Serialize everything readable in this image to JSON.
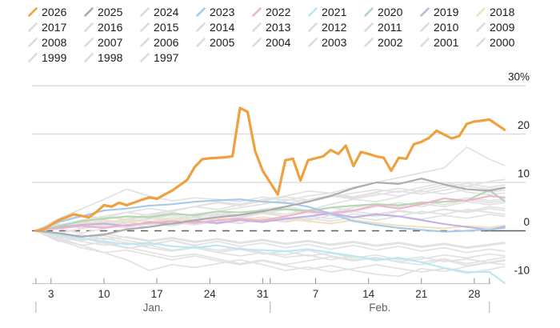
{
  "legend": {
    "items": [
      {
        "year": "2026",
        "color": "#EFA03F"
      },
      {
        "year": "2025",
        "color": "#ABABAB"
      },
      {
        "year": "2024",
        "color": "#DBDBDB"
      },
      {
        "year": "2023",
        "color": "#A6C9E9"
      },
      {
        "year": "2022",
        "color": "#EFB2CB"
      },
      {
        "year": "2021",
        "color": "#BBE7F1"
      },
      {
        "year": "2020",
        "color": "#B2D8B1"
      },
      {
        "year": "2019",
        "color": "#C3B2E4"
      },
      {
        "year": "2018",
        "color": "#F2E2BE"
      },
      {
        "year": "2017",
        "color": "#DBDBDB"
      },
      {
        "year": "2016",
        "color": "#DBDBDB"
      },
      {
        "year": "2015",
        "color": "#DBDBDB"
      },
      {
        "year": "2014",
        "color": "#DBDBDB"
      },
      {
        "year": "2013",
        "color": "#DBDBDB"
      },
      {
        "year": "2012",
        "color": "#DBDBDB"
      },
      {
        "year": "2011",
        "color": "#DBDBDB"
      },
      {
        "year": "2010",
        "color": "#DBDBDB"
      },
      {
        "year": "2009",
        "color": "#DBDBDB"
      },
      {
        "year": "2008",
        "color": "#DBDBDB"
      },
      {
        "year": "2007",
        "color": "#DBDBDB"
      },
      {
        "year": "2006",
        "color": "#DBDBDB"
      },
      {
        "year": "2005",
        "color": "#DBDBDB"
      },
      {
        "year": "2004",
        "color": "#DBDBDB"
      },
      {
        "year": "2003",
        "color": "#DBDBDB"
      },
      {
        "year": "2002",
        "color": "#DBDBDB"
      },
      {
        "year": "2001",
        "color": "#DBDBDB"
      },
      {
        "year": "2000",
        "color": "#DBDBDB"
      },
      {
        "year": "1999",
        "color": "#DBDBDB"
      },
      {
        "year": "1998",
        "color": "#DBDBDB"
      },
      {
        "year": "1997",
        "color": "#DBDBDB"
      }
    ]
  },
  "chart_data": {
    "type": "line",
    "title": "",
    "xlabel": "",
    "ylabel": "",
    "x_unit": "day of year (Jan 1 = 1)",
    "y_unit": "percent",
    "x_axis": {
      "domain": [
        1,
        63
      ],
      "labeled_tick_days": [
        3,
        10,
        17,
        24,
        31,
        38,
        45,
        52,
        59
      ],
      "labeled_tick_labels": [
        "3",
        "10",
        "17",
        "24",
        "31",
        "7",
        "14",
        "21",
        "28"
      ],
      "boundary_tick_days": [
        1,
        32,
        61
      ],
      "month_labels": [
        {
          "label": "Jan.",
          "center_day": 16.5
        },
        {
          "label": "Feb.",
          "center_day": 46.5
        }
      ]
    },
    "y_axis": {
      "range": [
        -12,
        31
      ],
      "tick_values": [
        30,
        20,
        10,
        0,
        -10
      ],
      "tick_labels": [
        "30%",
        "20",
        "10",
        "0",
        "-10"
      ],
      "gridline_values": [
        30,
        20,
        10
      ],
      "zero_line_dashed": true,
      "legend_position": "top"
    },
    "line_colors": {
      "gray_line": "#E2E2E2",
      "gridline": "#DADADA",
      "zero_line": "#5F5F5F",
      "axis_line": "#C8C8C8",
      "tick": "#8F8F8F",
      "tick_label": "#2E2E2E",
      "month_label": "#5F5F5F",
      "y_label": "#1F1F1F",
      "month_pipe": "#ADADAD"
    },
    "default_days": [
      1,
      4,
      7,
      10,
      13,
      16,
      19,
      22,
      25,
      28,
      31,
      34,
      37,
      40,
      43,
      46,
      49,
      52,
      55,
      58,
      61,
      63
    ],
    "series": [
      {
        "name": "1997",
        "values": [
          0,
          -1.6,
          -0.8,
          -1.8,
          -1.2,
          -2.0,
          -1.4,
          -2.2,
          -1.6,
          -2.4,
          -1.8,
          -2.6,
          -2.0,
          -2.8,
          -2.2,
          -3.0,
          -2.4,
          -3.2,
          -2.6,
          -3.4,
          -2.8,
          -2.4
        ]
      },
      {
        "name": "1998",
        "values": [
          0,
          0.4,
          1.2,
          0.8,
          1.6,
          2.4,
          3.2,
          2.6,
          3.6,
          3.0,
          4.0,
          3.4,
          4.4,
          3.8,
          4.8,
          5.6,
          5.0,
          6.0,
          5.4,
          6.4,
          5.8,
          6.2
        ]
      },
      {
        "name": "1999",
        "values": [
          0,
          2.0,
          3.2,
          2.6,
          3.8,
          4.6,
          4.0,
          5.0,
          5.8,
          5.2,
          6.2,
          7.0,
          6.4,
          7.4,
          6.8,
          7.8,
          7.2,
          8.2,
          7.6,
          8.6,
          8.0,
          8.4
        ]
      },
      {
        "name": "2000",
        "values": [
          0,
          -2.2,
          -1.4,
          -2.6,
          -3.6,
          -3.0,
          -4.0,
          -3.4,
          -4.4,
          -3.8,
          -4.8,
          -4.2,
          -5.2,
          -4.6,
          -5.6,
          -5.0,
          -6.0,
          -5.4,
          -6.4,
          -5.8,
          -6.6,
          -6.2
        ]
      },
      {
        "name": "2001",
        "values": [
          0,
          1.4,
          0.6,
          1.6,
          2.4,
          1.8,
          2.8,
          2.2,
          3.2,
          2.6,
          3.6,
          4.4,
          3.8,
          4.8,
          4.2,
          5.2,
          4.6,
          5.6,
          5.0,
          6.0,
          5.4,
          5.8
        ]
      },
      {
        "name": "2002",
        "values": [
          0,
          -0.6,
          0.4,
          1.2,
          0.6,
          1.6,
          1.0,
          2.0,
          1.4,
          2.4,
          1.8,
          2.8,
          2.2,
          3.2,
          2.6,
          3.6,
          3.0,
          4.0,
          3.4,
          4.4,
          3.8,
          3.4
        ]
      },
      {
        "name": "2003",
        "values": [
          0,
          -1.8,
          -3.0,
          -2.4,
          -3.4,
          -4.4,
          -5.4,
          -4.8,
          -5.8,
          -6.8,
          -6.0,
          -7.0,
          -6.2,
          -5.4,
          -6.2,
          -5.6,
          -6.4,
          -5.8,
          -5.0,
          -5.6,
          -4.8,
          -5.2
        ]
      },
      {
        "name": "2004",
        "values": [
          0,
          0.8,
          1.6,
          1.0,
          1.8,
          1.2,
          2.0,
          1.4,
          2.2,
          1.6,
          2.4,
          1.8,
          2.6,
          2.0,
          2.8,
          2.2,
          3.0,
          2.4,
          3.2,
          2.6,
          3.4,
          3.0
        ]
      },
      {
        "name": "2005",
        "values": [
          0,
          -0.4,
          -1.2,
          -0.6,
          -1.4,
          -2.2,
          -1.6,
          -2.4,
          -1.8,
          -2.6,
          -2.0,
          -2.8,
          -2.2,
          -3.0,
          -2.4,
          -3.2,
          -2.6,
          -3.4,
          -2.8,
          -3.6,
          -3.0,
          -2.6
        ]
      },
      {
        "name": "2006",
        "values": [
          0,
          1.0,
          2.2,
          3.0,
          3.8,
          3.2,
          4.2,
          5.0,
          4.4,
          5.4,
          6.2,
          5.6,
          6.4,
          7.2,
          6.6,
          7.4,
          8.2,
          7.6,
          8.4,
          9.2,
          8.6,
          9.0
        ]
      },
      {
        "name": "2007",
        "values": [
          0,
          0.6,
          1.4,
          2.2,
          1.8,
          2.6,
          2.0,
          2.8,
          3.4,
          2.8,
          3.6,
          3.0,
          3.8,
          3.2,
          4.0,
          3.4,
          4.2,
          3.6,
          4.4,
          3.8,
          4.6,
          4.2
        ]
      },
      {
        "name": "2008",
        "values": [
          0,
          -1.2,
          -2.2,
          -3.0,
          -2.5,
          -3.5,
          -4.2,
          -3.5,
          -4.5,
          -5.2,
          -4.5,
          -5.5,
          -5.0,
          -6.0,
          -5.2,
          -6.2,
          -5.5,
          -6.5,
          -5.8,
          -6.8,
          -6.0,
          -5.5
        ]
      },
      {
        "name": "2009",
        "values": [
          0,
          -2.0,
          -3.5,
          -4.5,
          -4.0,
          -5.0,
          -6.0,
          -5.2,
          -6.2,
          -7.0,
          -6.2,
          -7.2,
          -8.0,
          -7.2,
          -8.2,
          -9.0,
          -9.4,
          -7.8,
          -8.4,
          -7.4,
          -6.6,
          -7.0
        ]
      },
      {
        "name": "2010",
        "values": [
          0,
          -0.8,
          -1.8,
          -1.0,
          -2.0,
          -2.8,
          -2.0,
          -3.0,
          -2.2,
          -3.2,
          -2.5,
          -3.5,
          -2.8,
          -3.8,
          -3.0,
          -4.0,
          -3.2,
          -4.2,
          -3.5,
          -4.5,
          -3.8,
          -4.2
        ]
      },
      {
        "name": "2011",
        "values": [
          0,
          0.5,
          -0.5,
          0.5,
          1.2,
          0.8,
          1.8,
          1.2,
          2.0,
          1.5,
          2.5,
          2.0,
          3.0,
          2.5,
          3.5,
          3.0,
          4.0,
          3.5,
          4.5,
          4.0,
          5.0,
          4.6
        ]
      },
      {
        "name": "2012",
        "values": [
          0,
          0.8,
          1.8,
          1.2,
          2.2,
          3.0,
          3.8,
          3.0,
          4.0,
          4.8,
          5.5,
          6.5,
          6.0,
          7.0,
          7.8,
          8.5,
          8.0,
          9.0,
          10.0,
          9.2,
          10.2,
          10.6
        ]
      },
      {
        "name": "2013",
        "values": [
          0,
          2.5,
          4.5,
          6.5,
          8.6,
          7.2,
          6.2,
          6.8,
          6.5,
          6.0,
          7.0,
          6.2,
          7.2,
          7.8,
          7.0,
          8.0,
          8.8,
          8.0,
          9.0,
          9.8,
          9.0,
          9.5
        ]
      },
      {
        "name": "2014",
        "values": [
          0,
          -1.5,
          -3.0,
          -4.5,
          -6.0,
          -8.2,
          -7.0,
          -7.6,
          -6.8,
          -6.0,
          -7.0,
          -8.2,
          -7.5,
          -8.5,
          -7.8,
          -7.0,
          -7.8,
          -8.5,
          -7.8,
          -8.8,
          -8.0,
          -7.4
        ]
      },
      {
        "name": "2015",
        "values": [
          0,
          -1.0,
          -2.0,
          -1.5,
          -2.5,
          -3.0,
          -2.0,
          -3.2,
          -4.0,
          -3.5,
          -4.5,
          -5.0,
          -4.0,
          -5.2,
          -6.0,
          -5.5,
          -6.5,
          -7.0,
          -6.0,
          -7.2,
          -6.5,
          -6.0
        ]
      },
      {
        "name": "2016",
        "values": [
          0,
          -0.5,
          0.5,
          1.0,
          1.8,
          1.2,
          2.2,
          2.8,
          2.0,
          3.0,
          3.8,
          3.0,
          4.0,
          4.8,
          4.0,
          5.0,
          5.8,
          5.0,
          6.0,
          6.8,
          6.2,
          6.6
        ]
      },
      {
        "name": "2017",
        "values": [
          0,
          0.8,
          1.8,
          2.8,
          2.4,
          3.4,
          4.2,
          5.0,
          6.0,
          5.5,
          6.5,
          7.2,
          8.2,
          7.8,
          9.0,
          10.0,
          11.0,
          12.0,
          13.0,
          17.3,
          14.8,
          13.5
        ]
      },
      {
        "name": "2024",
        "values": [
          0,
          1.2,
          2.0,
          1.5,
          2.5,
          3.0,
          2.2,
          3.5,
          4.0,
          3.2,
          4.5,
          5.0,
          4.2,
          5.5,
          6.5,
          6.0,
          7.0,
          8.5,
          9.5,
          8.0,
          7.5,
          7.8
        ]
      },
      {
        "name": "2018",
        "values": [
          0,
          0.6,
          1.4,
          1.8,
          2.2,
          1.9,
          2.4,
          2.1,
          2.6,
          2.3,
          2.8,
          2.4,
          2.0,
          1.5,
          2.2,
          1.6,
          1.1,
          0.8,
          0.5,
          1.0,
          0.7,
          1.1
        ]
      },
      {
        "name": "2021",
        "values": [
          0,
          -0.8,
          -1.5,
          -2.2,
          -2.8,
          -2.5,
          -3.2,
          -3.5,
          -3.0,
          -3.8,
          -4.0,
          -4.2,
          -3.8,
          -4.5,
          -5.2,
          -6.0,
          -5.6,
          -6.5,
          -7.7,
          -8.5,
          -8.5,
          -10.8
        ]
      },
      {
        "name": "2019",
        "values": [
          0,
          0.8,
          1.2,
          1.5,
          1.0,
          1.8,
          1.4,
          2.0,
          1.6,
          2.2,
          1.8,
          2.5,
          3.0,
          3.6,
          2.8,
          3.4,
          3.0,
          2.2,
          1.4,
          0.8,
          0.2,
          0.9
        ]
      },
      {
        "name": "2020",
        "values": [
          0,
          1.0,
          2.0,
          2.5,
          3.0,
          2.8,
          3.5,
          3.2,
          4.0,
          3.8,
          4.2,
          4.5,
          4.1,
          4.8,
          5.2,
          5.5,
          5.3,
          5.8,
          6.0,
          6.3,
          8.4,
          6.1
        ]
      },
      {
        "name": "2022",
        "values": [
          0,
          0.5,
          1.0,
          0.6,
          1.2,
          1.6,
          2.0,
          1.6,
          2.2,
          2.5,
          2.1,
          3.0,
          4.0,
          3.6,
          4.2,
          5.3,
          4.6,
          5.5,
          6.7,
          6.2,
          7.2,
          6.9
        ]
      },
      {
        "name": "2023",
        "values": [
          0,
          1.8,
          3.0,
          4.2,
          4.6,
          5.2,
          5.5,
          6.0,
          6.3,
          6.5,
          6.0,
          5.8,
          5.0,
          3.5,
          2.0,
          1.2,
          0.6,
          0.2,
          -0.2,
          0.0,
          0.3,
          0.6
        ]
      },
      {
        "name": "2025",
        "values": [
          0,
          -0.5,
          -1.2,
          -0.8,
          0.3,
          0.8,
          1.5,
          2.2,
          2.8,
          3.3,
          4.0,
          5.0,
          6.0,
          7.2,
          8.8,
          10.0,
          9.7,
          10.8,
          9.6,
          8.6,
          8.3,
          8.9
        ]
      },
      {
        "name": "2026",
        "emphasis": true,
        "days": [
          1,
          2,
          4,
          6,
          7,
          8,
          9,
          10,
          11,
          12,
          13,
          15,
          16,
          17,
          18,
          19,
          20,
          21,
          22,
          23,
          24,
          26,
          27,
          28,
          29,
          30,
          31,
          33,
          34,
          35,
          36,
          37,
          39,
          40,
          41,
          42,
          43,
          44,
          45,
          46,
          47,
          48,
          49,
          50,
          51,
          52,
          53,
          54,
          55,
          56,
          57,
          58,
          59,
          61,
          63
        ],
        "values": [
          0,
          0.3,
          2.2,
          3.4,
          3.1,
          2.8,
          3.9,
          5.3,
          5.0,
          5.8,
          5.3,
          6.4,
          6.9,
          6.6,
          7.5,
          8.3,
          9.4,
          10.5,
          13.2,
          14.8,
          15.0,
          15.2,
          15.4,
          25.4,
          24.6,
          16.5,
          12.4,
          7.5,
          14.6,
          14.9,
          10.4,
          14.6,
          15.4,
          16.7,
          15.9,
          17.6,
          13.4,
          16.3,
          15.9,
          15.4,
          15.1,
          12.4,
          15.1,
          14.9,
          17.9,
          18.4,
          19.2,
          20.7,
          19.9,
          19.1,
          19.6,
          22.1,
          22.6,
          23.0,
          20.9
        ]
      }
    ]
  }
}
